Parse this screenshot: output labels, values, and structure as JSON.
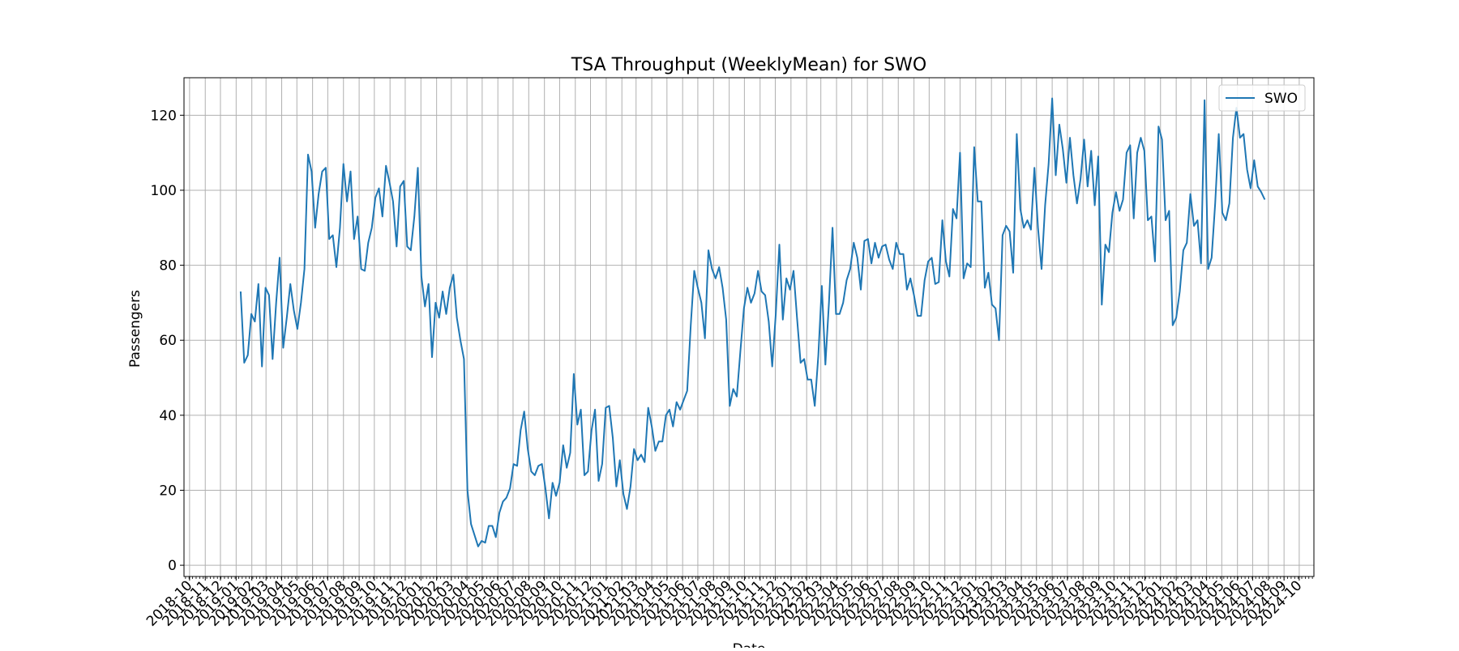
{
  "chart_data": {
    "type": "line",
    "title": "TSA Throughput (WeeklyMean) for SWO",
    "xlabel": "Date",
    "ylabel": "Passengers",
    "xlim": [
      "2018-09-20",
      "2024-10-30"
    ],
    "ylim": [
      -3,
      130
    ],
    "yticks": [
      0,
      20,
      40,
      60,
      80,
      100,
      120
    ],
    "xtick_labels": [
      "2018-10",
      "2018-11",
      "2018-12",
      "2019-01",
      "2019-02",
      "2019-03",
      "2019-04",
      "2019-05",
      "2019-06",
      "2019-07",
      "2019-08",
      "2019-09",
      "2019-10",
      "2019-11",
      "2019-12",
      "2020-01",
      "2020-02",
      "2020-03",
      "2020-04",
      "2020-05",
      "2020-06",
      "2020-07",
      "2020-08",
      "2020-09",
      "2020-10",
      "2020-11",
      "2020-12",
      "2021-01",
      "2021-02",
      "2021-03",
      "2021-04",
      "2021-05",
      "2021-06",
      "2021-07",
      "2021-08",
      "2021-09",
      "2021-10",
      "2021-11",
      "2021-12",
      "2022-01",
      "2022-02",
      "2022-03",
      "2022-04",
      "2022-05",
      "2022-06",
      "2022-07",
      "2022-08",
      "2022-09",
      "2022-10",
      "2022-11",
      "2022-12",
      "2023-01",
      "2023-02",
      "2023-03",
      "2023-04",
      "2023-05",
      "2023-06",
      "2023-07",
      "2023-08",
      "2023-09",
      "2023-10",
      "2023-11",
      "2023-12",
      "2024-01",
      "2024-02",
      "2024-03",
      "2024-04",
      "2024-05",
      "2024-06",
      "2024-07",
      "2024-08",
      "2024-09",
      "2024-10"
    ],
    "grid": true,
    "legend_position": "top-right",
    "series": [
      {
        "name": "SWO",
        "color": "#1f77b4",
        "start_date": "2019-01-10",
        "interval_days": 7,
        "values": [
          73,
          54,
          56,
          67,
          65,
          75,
          53,
          74,
          72,
          55,
          70,
          82,
          58,
          66,
          75,
          68,
          63,
          70,
          79,
          109.5,
          105,
          90,
          99,
          105,
          106,
          87,
          88,
          79.5,
          90,
          107,
          97,
          105,
          87,
          93,
          79,
          78.5,
          86,
          90,
          98,
          100.5,
          93,
          106.5,
          102,
          97,
          85,
          101,
          102.5,
          85,
          84,
          93,
          106,
          77,
          69,
          75,
          55.5,
          70,
          66,
          73,
          67,
          74,
          77.5,
          66,
          60,
          55,
          20,
          11,
          8,
          5,
          6.5,
          6,
          10.5,
          10.5,
          7.5,
          14,
          17,
          18,
          20.5,
          27,
          26.5,
          36,
          41,
          31,
          25,
          24,
          26.5,
          27,
          20.5,
          12.5,
          22,
          18.5,
          22,
          32,
          26,
          30,
          51,
          37.5,
          41.5,
          24,
          25,
          36,
          41.5,
          22.5,
          27,
          42,
          42.5,
          34,
          21,
          28,
          19,
          15,
          21,
          31,
          28,
          29.5,
          27.5,
          42,
          37,
          30.5,
          33,
          33,
          40,
          41.5,
          37,
          43.5,
          41.5,
          44,
          46.5,
          64,
          78.5,
          74,
          70,
          60.5,
          84,
          79,
          76.5,
          79.5,
          74,
          65.5,
          42.5,
          47,
          45,
          57,
          68.5,
          74,
          70,
          72.5,
          78.5,
          73,
          72,
          65,
          53,
          67,
          85.5,
          65.5,
          76.5,
          73.5,
          78.5,
          66,
          54,
          55,
          49.5,
          49.5,
          42.5,
          56,
          74.5,
          53.5,
          70,
          90,
          67,
          67,
          70,
          76,
          79,
          86,
          82,
          73.5,
          86.5,
          87,
          80.5,
          86,
          82,
          85,
          85.5,
          81.5,
          79,
          86,
          83,
          83,
          73.5,
          76.5,
          72,
          66.5,
          66.5,
          76,
          81,
          82,
          75,
          75.5,
          92,
          81,
          77,
          95,
          92.5,
          110,
          76.5,
          80.5,
          79.5,
          111.5,
          97,
          97,
          74,
          78,
          69.5,
          68.5,
          60,
          88,
          90.5,
          89,
          78,
          115,
          95,
          90,
          92,
          89.5,
          106,
          90,
          79,
          96,
          107,
          124.5,
          104,
          117.5,
          111,
          102,
          114,
          104,
          96.5,
          103,
          113.5,
          101,
          110.5,
          96,
          109,
          69.5,
          85.5,
          83.5,
          94,
          99.5,
          94.5,
          97.5,
          110,
          112,
          92.5,
          110,
          114,
          110.5,
          92,
          93,
          81,
          117,
          113.5,
          92,
          94.5,
          64,
          66,
          73,
          84,
          86,
          99,
          90.5,
          92,
          80.5,
          124,
          79,
          82,
          96.5,
          115,
          94,
          92,
          96.5,
          114,
          122,
          114,
          115,
          105.5,
          100.5,
          108,
          101,
          99.5,
          97.5
        ]
      }
    ]
  }
}
